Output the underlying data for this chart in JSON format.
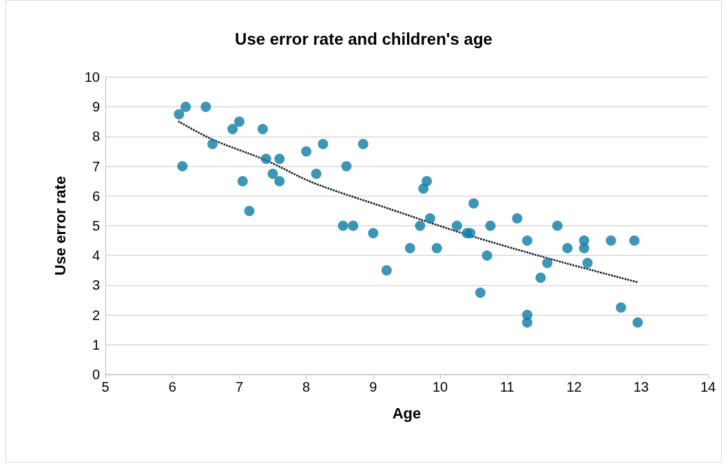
{
  "chart_data": {
    "type": "scatter",
    "title": "Use error rate and children's age",
    "xlabel": "Age",
    "ylabel": "Use error rate",
    "xlim": [
      5,
      14
    ],
    "xticks": [
      5,
      6,
      7,
      8,
      9,
      10,
      11,
      12,
      13,
      14
    ],
    "ylim": [
      0,
      10
    ],
    "yticks": [
      0,
      1,
      2,
      3,
      4,
      5,
      6,
      7,
      8,
      9,
      10
    ],
    "grid": "y",
    "marker": "circle",
    "series": [
      {
        "color": "#0e7ca5",
        "x": [
          6.1,
          6.2,
          6.5,
          6.15,
          6.6,
          6.9,
          7.0,
          7.35,
          7.05,
          7.15,
          7.4,
          7.5,
          7.6,
          7.6,
          8.0,
          8.15,
          8.25,
          8.6,
          8.85,
          8.55,
          8.7,
          9.0,
          9.2,
          9.55,
          9.75,
          9.8,
          9.85,
          9.7,
          9.95,
          10.25,
          10.4,
          10.45,
          10.5,
          10.75,
          10.7,
          10.6,
          11.15,
          11.3,
          11.3,
          11.3,
          11.5,
          11.6,
          11.75,
          11.9,
          12.15,
          12.15,
          12.2,
          12.55,
          12.9,
          12.7,
          12.95
        ],
        "values": [
          8.75,
          9.0,
          9.0,
          7.0,
          7.75,
          8.25,
          8.5,
          8.25,
          6.5,
          5.5,
          7.25,
          6.75,
          7.25,
          6.5,
          7.5,
          6.75,
          7.75,
          7.0,
          7.75,
          5.0,
          5.0,
          4.75,
          3.5,
          4.25,
          6.25,
          6.5,
          5.25,
          5.0,
          4.25,
          5.0,
          4.75,
          4.75,
          5.75,
          5.0,
          4.0,
          2.75,
          5.25,
          4.5,
          2.0,
          1.75,
          3.25,
          3.75,
          5.0,
          4.25,
          4.5,
          4.25,
          3.75,
          4.5,
          4.5,
          2.25,
          1.75
        ]
      },
      {
        "type": "line",
        "color": "#1f2333",
        "marker": "none",
        "line_style": "dotted",
        "x": [
          6.1,
          6.6,
          7.4,
          8.1,
          9.2,
          10.4,
          11.7,
          12.95
        ],
        "values": [
          8.5,
          7.9,
          7.2,
          6.45,
          5.6,
          4.7,
          3.85,
          3.1
        ]
      }
    ]
  }
}
